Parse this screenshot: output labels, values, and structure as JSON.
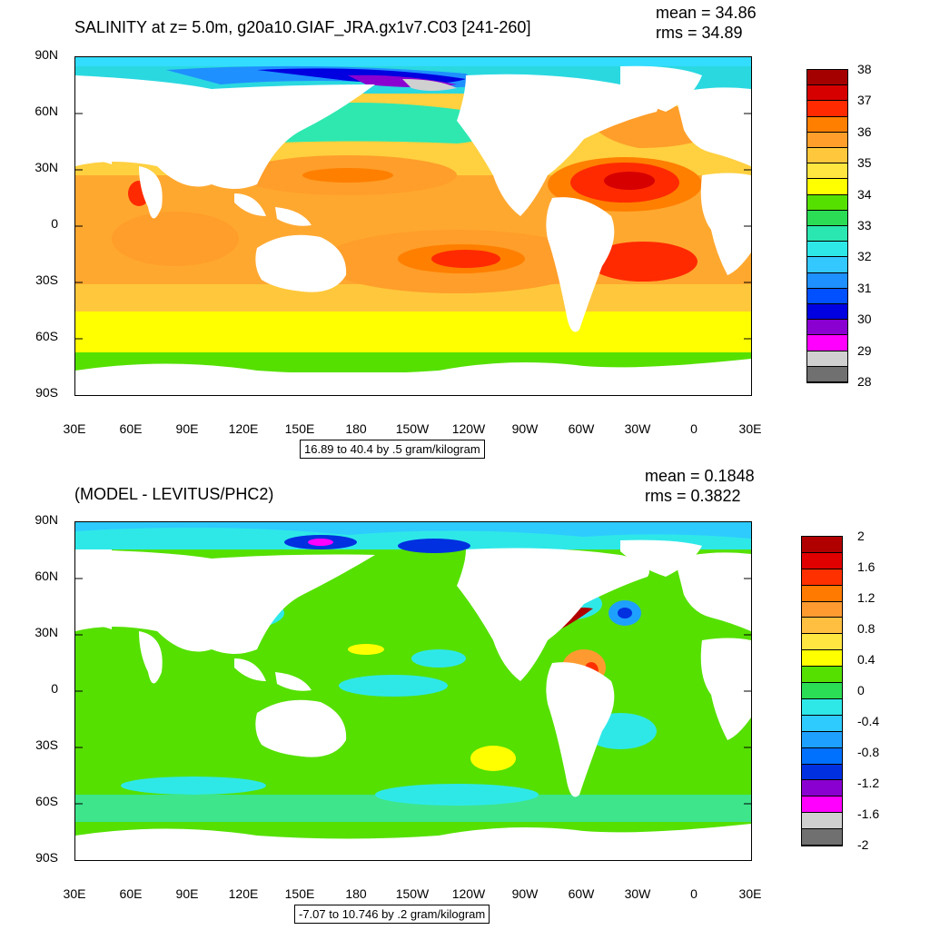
{
  "top": {
    "title": "SALINITY at z=   5.0m, g20a10.GIAF_JRA.gx1v7.C03 [241-260]",
    "mean_text": "mean = 34.86",
    "rms_text": "rms = 34.89",
    "info": "16.89 to 40.4 by .5 gram/kilogram",
    "lat_labels": [
      "90N",
      "60N",
      "30N",
      "0",
      "30S",
      "60S",
      "90S"
    ],
    "lon_labels": [
      "30E",
      "60E",
      "90E",
      "120E",
      "150E",
      "180",
      "150W",
      "120W",
      "90W",
      "60W",
      "30W",
      "0",
      "30E"
    ],
    "colorbar": {
      "labels": [
        "38",
        "37",
        "36",
        "35",
        "34",
        "33",
        "32",
        "31",
        "30",
        "29",
        "28"
      ],
      "colors": [
        "#a50000",
        "#d60000",
        "#ff2a00",
        "#ff7f00",
        "#ff9e2a",
        "#ffc83c",
        "#ffe640",
        "#ffff00",
        "#55e000",
        "#2add55",
        "#2ae6b0",
        "#2ee8e8",
        "#33c8ff",
        "#1e90ff",
        "#0050ff",
        "#0000e0",
        "#8a00d0",
        "#ff00ff",
        "#d0d0d0",
        "#707070"
      ]
    }
  },
  "bottom": {
    "title": "(MODEL - LEVITUS/PHC2)",
    "mean_text": "mean = 0.1848",
    "rms_text": "rms = 0.3822",
    "info": "-7.07 to 10.746 by .2 gram/kilogram",
    "lat_labels": [
      "90N",
      "60N",
      "30N",
      "0",
      "30S",
      "60S",
      "90S"
    ],
    "lon_labels": [
      "30E",
      "60E",
      "90E",
      "120E",
      "150E",
      "180",
      "150W",
      "120W",
      "90W",
      "60W",
      "30W",
      "0",
      "30E"
    ],
    "colorbar": {
      "labels": [
        "2",
        "1.6",
        "1.2",
        "0.8",
        "0.4",
        "0",
        "-0.4",
        "-0.8",
        "-1.2",
        "-1.6",
        "-2"
      ],
      "colors": [
        "#b00000",
        "#e00000",
        "#ff3000",
        "#ff7a00",
        "#ff9a30",
        "#ffbf40",
        "#ffe640",
        "#ffff00",
        "#55e000",
        "#2add55",
        "#2ee8e8",
        "#2ecbff",
        "#1ea0ff",
        "#0070ff",
        "#0030e0",
        "#8a00d0",
        "#ff00ff",
        "#d0d0d0",
        "#707070"
      ]
    }
  }
}
